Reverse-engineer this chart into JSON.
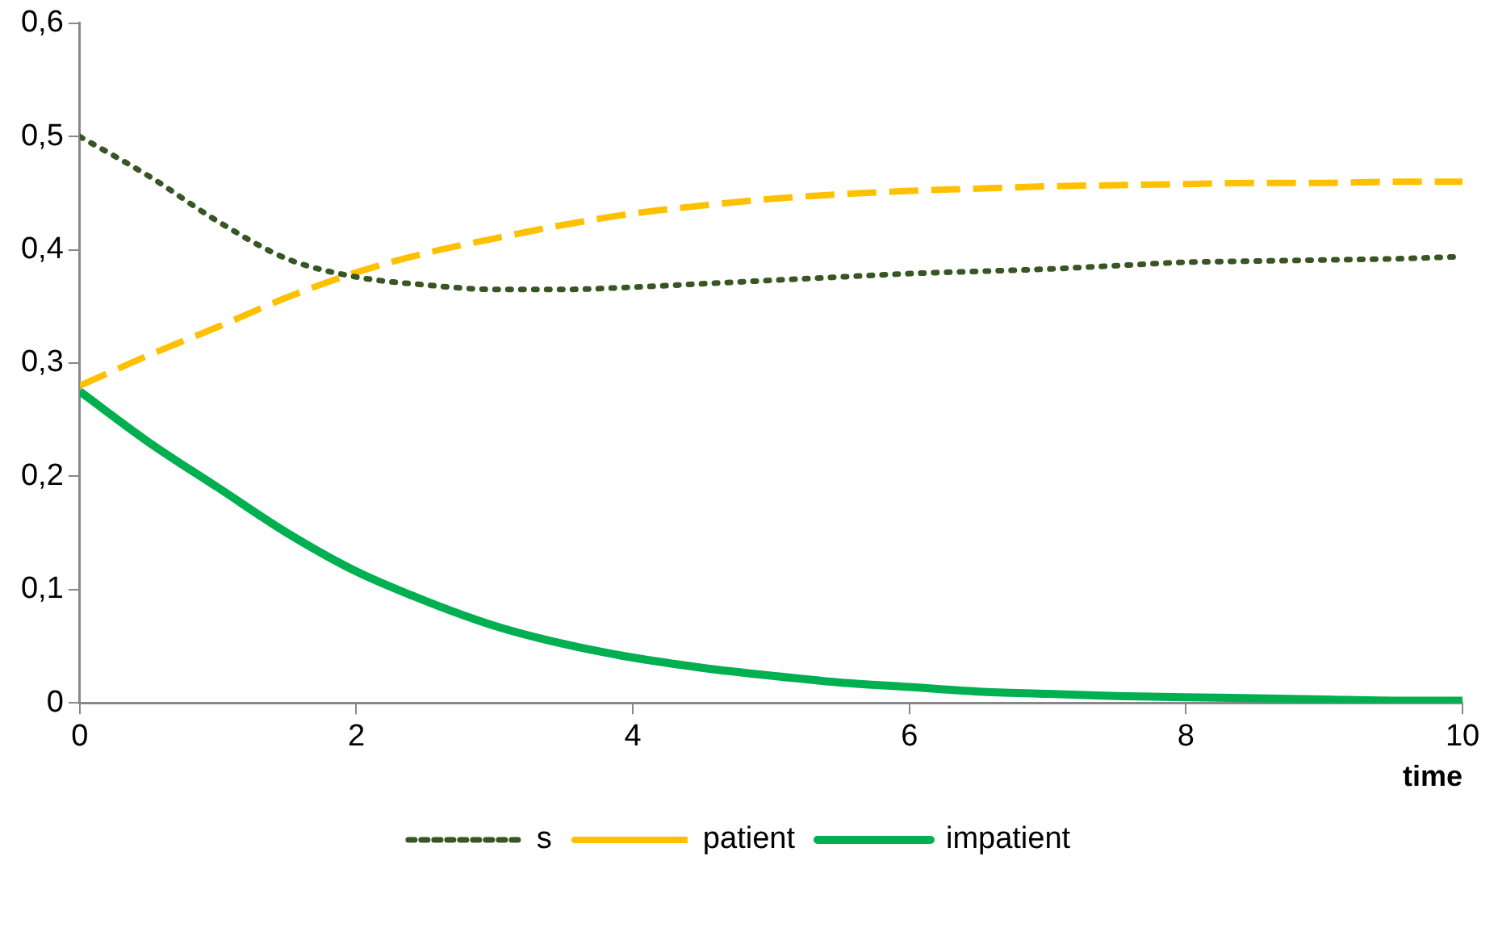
{
  "chart_data": {
    "type": "line",
    "xlabel": "time",
    "x": [
      0,
      0.5,
      1,
      1.5,
      2,
      2.5,
      3,
      3.5,
      4,
      4.5,
      5,
      5.5,
      6,
      6.5,
      7,
      7.5,
      8,
      8.5,
      9,
      9.5,
      10
    ],
    "series": [
      {
        "name": "s",
        "color": "#375623",
        "line_style": "dotted",
        "values": [
          0.5,
          0.465,
          0.425,
          0.392,
          0.376,
          0.369,
          0.365,
          0.365,
          0.367,
          0.37,
          0.373,
          0.376,
          0.379,
          0.381,
          0.383,
          0.386,
          0.389,
          0.39,
          0.391,
          0.392,
          0.394
        ]
      },
      {
        "name": "patient",
        "color": "#ffc000",
        "line_style": "dashed",
        "values": [
          0.28,
          0.307,
          0.332,
          0.358,
          0.38,
          0.397,
          0.41,
          0.422,
          0.432,
          0.439,
          0.445,
          0.449,
          0.452,
          0.454,
          0.456,
          0.457,
          0.458,
          0.459,
          0.459,
          0.46,
          0.46
        ]
      },
      {
        "name": "impatient",
        "color": "#00b050",
        "line_style": "solid",
        "values": [
          0.275,
          0.23,
          0.19,
          0.15,
          0.116,
          0.09,
          0.068,
          0.052,
          0.04,
          0.031,
          0.024,
          0.018,
          0.014,
          0.01,
          0.008,
          0.006,
          0.005,
          0.004,
          0.003,
          0.002,
          0.002
        ]
      }
    ],
    "xlim": [
      0,
      10
    ],
    "xticks": [
      0,
      2,
      4,
      6,
      8,
      10
    ],
    "ylim": [
      0,
      0.6
    ],
    "yticks": [
      {
        "value": 0,
        "label": "0"
      },
      {
        "value": 0.1,
        "label": "0,1"
      },
      {
        "value": 0.2,
        "label": "0,2"
      },
      {
        "value": 0.3,
        "label": "0,3"
      },
      {
        "value": 0.4,
        "label": "0,4"
      },
      {
        "value": 0.5,
        "label": "0,5"
      },
      {
        "value": 0.6,
        "label": "0,6"
      }
    ],
    "grid": false,
    "legend": "bottom",
    "marker": "none"
  }
}
